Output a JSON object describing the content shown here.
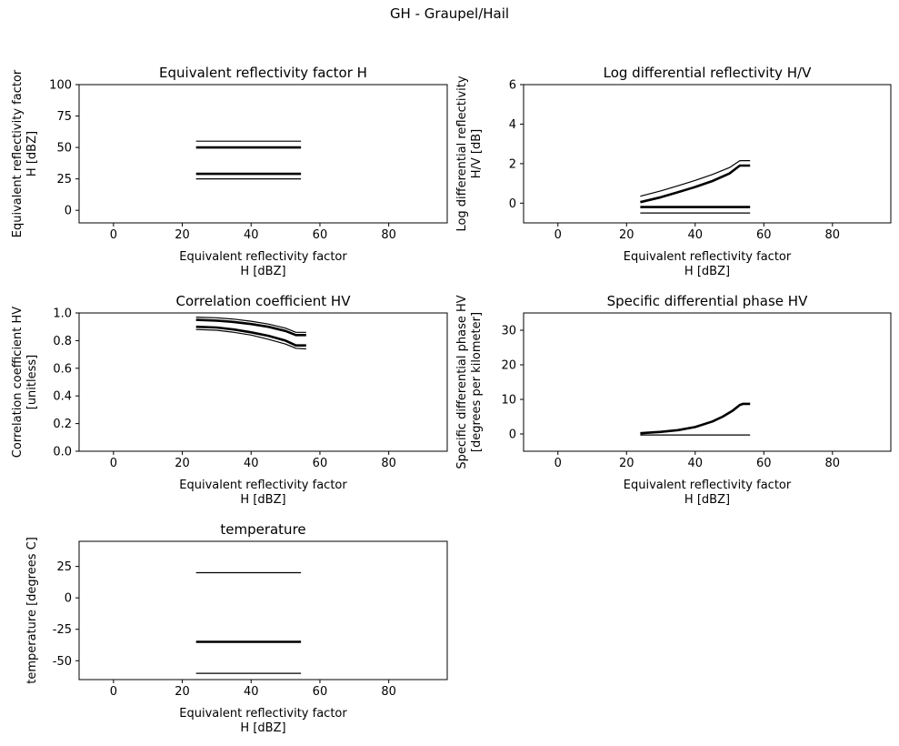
{
  "figure": {
    "title": "GH - Graupel/Hail"
  },
  "chart_data": [
    {
      "type": "line",
      "title": "Equivalent reflectivity factor H",
      "xlabel": [
        "Equivalent reflectivity factor",
        "H [dBZ]"
      ],
      "ylabel": [
        "Equivalent reflectivity factor",
        "H [dBZ]"
      ],
      "xlim": [
        -10,
        97
      ],
      "ylim": [
        -10,
        100
      ],
      "xticks": [
        0,
        20,
        40,
        60,
        80
      ],
      "yticks": [
        0,
        25,
        50,
        75,
        100
      ],
      "series": [
        {
          "x": [
            24,
            54.5
          ],
          "y": [
            55,
            55
          ],
          "weight": "thin"
        },
        {
          "x": [
            24,
            54.5
          ],
          "y": [
            50,
            50
          ],
          "weight": "thick"
        },
        {
          "x": [
            24,
            54.5
          ],
          "y": [
            29,
            29
          ],
          "weight": "thick"
        },
        {
          "x": [
            24,
            54.5
          ],
          "y": [
            25,
            25
          ],
          "weight": "thin"
        }
      ]
    },
    {
      "type": "line",
      "title": "Log differential reflectivity H/V",
      "xlabel": [
        "Equivalent reflectivity factor",
        "H [dBZ]"
      ],
      "ylabel": [
        "Log differential reflectivity",
        "H/V [dB]"
      ],
      "xlim": [
        -10,
        97
      ],
      "ylim": [
        -1,
        6
      ],
      "xticks": [
        0,
        20,
        40,
        60,
        80
      ],
      "yticks": [
        0,
        2,
        4,
        6
      ],
      "series": [
        {
          "x": [
            24,
            30,
            35,
            40,
            45,
            50,
            53,
            56
          ],
          "y": [
            0.35,
            0.62,
            0.88,
            1.15,
            1.45,
            1.8,
            2.15,
            2.15
          ],
          "weight": "thin"
        },
        {
          "x": [
            24,
            30,
            35,
            40,
            45,
            50,
            53,
            56
          ],
          "y": [
            0.05,
            0.3,
            0.55,
            0.82,
            1.12,
            1.5,
            1.9,
            1.9
          ],
          "weight": "thick"
        },
        {
          "x": [
            24,
            56
          ],
          "y": [
            -0.2,
            -0.2
          ],
          "weight": "thick"
        },
        {
          "x": [
            24,
            56
          ],
          "y": [
            -0.5,
            -0.5
          ],
          "weight": "thin"
        }
      ]
    },
    {
      "type": "line",
      "title": "Correlation coefficient HV",
      "xlabel": [
        "Equivalent reflectivity factor",
        "H [dBZ]"
      ],
      "ylabel": [
        "Correlation coefficient HV",
        "[unitless]"
      ],
      "xlim": [
        -10,
        97
      ],
      "ylim": [
        0,
        1
      ],
      "xticks": [
        0,
        20,
        40,
        60,
        80
      ],
      "yticks": [
        "0.0",
        "0.2",
        "0.4",
        "0.6",
        "0.8",
        "1.0"
      ],
      "series": [
        {
          "x": [
            24,
            30,
            35,
            40,
            45,
            50,
            53,
            56
          ],
          "y": [
            0.97,
            0.965,
            0.955,
            0.94,
            0.92,
            0.89,
            0.86,
            0.86
          ],
          "weight": "thin"
        },
        {
          "x": [
            24,
            30,
            35,
            40,
            45,
            50,
            53,
            56
          ],
          "y": [
            0.95,
            0.945,
            0.935,
            0.92,
            0.9,
            0.87,
            0.84,
            0.84
          ],
          "weight": "thick"
        },
        {
          "x": [
            24,
            30,
            35,
            40,
            45,
            50,
            53,
            56
          ],
          "y": [
            0.9,
            0.895,
            0.88,
            0.86,
            0.835,
            0.8,
            0.765,
            0.765
          ],
          "weight": "thick"
        },
        {
          "x": [
            24,
            30,
            35,
            40,
            45,
            50,
            53,
            56
          ],
          "y": [
            0.88,
            0.875,
            0.86,
            0.84,
            0.81,
            0.775,
            0.745,
            0.74
          ],
          "weight": "thin"
        }
      ]
    },
    {
      "type": "line",
      "title": "Specific differential phase HV",
      "xlabel": [
        "Equivalent reflectivity factor",
        "H [dBZ]"
      ],
      "ylabel": [
        "Specific differential phase HV",
        "[degrees per kilometer]"
      ],
      "xlim": [
        -10,
        97
      ],
      "ylim": [
        -5,
        35
      ],
      "xticks": [
        0,
        20,
        40,
        60,
        80
      ],
      "yticks": [
        0,
        10,
        20,
        30
      ],
      "series": [
        {
          "x": [
            24,
            30,
            35,
            40,
            45,
            48,
            51,
            53,
            54,
            56
          ],
          "y": [
            0.2,
            0.6,
            1.1,
            2.0,
            3.6,
            5.0,
            6.8,
            8.4,
            8.7,
            8.7
          ],
          "weight": "thick"
        },
        {
          "x": [
            24,
            56
          ],
          "y": [
            -0.3,
            -0.3
          ],
          "weight": "thin"
        }
      ]
    },
    {
      "type": "line",
      "title": "temperature",
      "xlabel": [
        "Equivalent reflectivity factor",
        "H [dBZ]"
      ],
      "ylabel": [
        "temperature [degrees C]",
        ""
      ],
      "xlim": [
        -10,
        97
      ],
      "ylim": [
        -65,
        45
      ],
      "xticks": [
        0,
        20,
        40,
        60,
        80
      ],
      "yticks": [
        -50,
        -25,
        0,
        25
      ],
      "series": [
        {
          "x": [
            24,
            54.5
          ],
          "y": [
            20,
            20
          ],
          "weight": "thin"
        },
        {
          "x": [
            24,
            54.5
          ],
          "y": [
            -35,
            -35
          ],
          "weight": "thick"
        },
        {
          "x": [
            24,
            54.5
          ],
          "y": [
            -60,
            -60
          ],
          "weight": "thin"
        }
      ]
    }
  ]
}
